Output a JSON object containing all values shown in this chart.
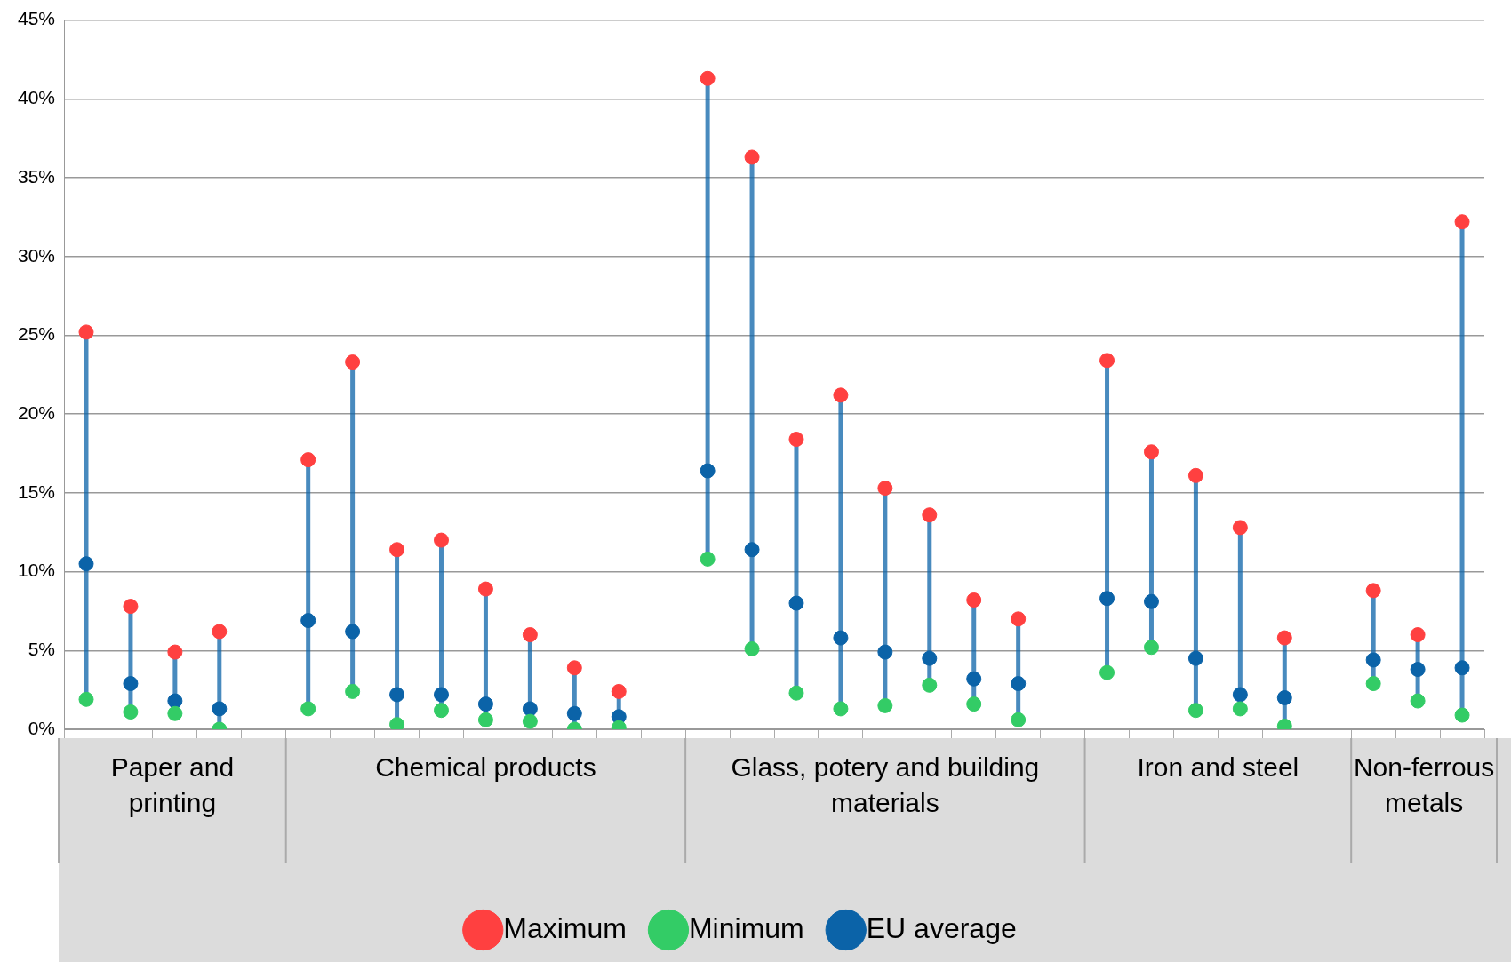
{
  "chart_data": {
    "type": "scatter",
    "categories": [
      null,
      null,
      null,
      null,
      null,
      null,
      null,
      null,
      null,
      null,
      null,
      null,
      null,
      null,
      null,
      null,
      null,
      null,
      null,
      null,
      null,
      null,
      null,
      null,
      null,
      null,
      null,
      null,
      null,
      null,
      null,
      null
    ],
    "series": [
      {
        "name": "Maximum",
        "color": "#ff4040",
        "values": [
          25.2,
          7.8,
          4.9,
          6.2,
          null,
          17.1,
          23.3,
          11.4,
          12.0,
          8.9,
          6.0,
          3.9,
          2.4,
          null,
          41.3,
          36.3,
          18.4,
          21.2,
          15.3,
          13.6,
          8.2,
          7.0,
          null,
          23.4,
          17.6,
          16.1,
          12.8,
          5.8,
          null,
          8.8,
          6.0,
          32.2
        ]
      },
      {
        "name": "Minimum",
        "color": "#33cc66",
        "values": [
          1.9,
          1.1,
          1.0,
          0.0,
          null,
          1.3,
          2.4,
          0.3,
          1.2,
          0.6,
          0.5,
          0.0,
          0.1,
          null,
          10.8,
          5.1,
          2.3,
          1.3,
          1.5,
          2.8,
          1.6,
          0.6,
          null,
          3.6,
          5.2,
          1.2,
          1.3,
          0.2,
          null,
          2.9,
          1.8,
          0.9
        ]
      },
      {
        "name": "EU average",
        "color": "#0b63a8",
        "values": [
          10.5,
          2.9,
          1.8,
          1.3,
          null,
          6.9,
          6.2,
          2.2,
          2.2,
          1.6,
          1.3,
          1.0,
          0.8,
          null,
          16.4,
          11.4,
          8.0,
          5.8,
          4.9,
          4.5,
          3.2,
          2.9,
          null,
          8.3,
          8.1,
          4.5,
          2.2,
          2.0,
          null,
          4.4,
          3.8,
          3.9
        ]
      }
    ],
    "annotations": [
      "Paper and printing",
      "Chemical products",
      "Glass, potery and building materials",
      "Iron and steel",
      "Non-ferrous metals"
    ],
    "ylim": [
      0,
      45
    ],
    "yticks": [
      {
        "value": 0,
        "label": "0%"
      },
      {
        "value": 5,
        "label": "5%"
      },
      {
        "value": 10,
        "label": "10%"
      },
      {
        "value": 15,
        "label": "15%"
      },
      {
        "value": 20,
        "label": "20%"
      },
      {
        "value": 25,
        "label": "25%"
      },
      {
        "value": 30,
        "label": "30%"
      },
      {
        "value": 35,
        "label": "35%"
      },
      {
        "value": 40,
        "label": "40%"
      },
      {
        "value": 45,
        "label": "45%"
      }
    ],
    "grid": "y",
    "legend": "bottom",
    "marker": "circle"
  }
}
